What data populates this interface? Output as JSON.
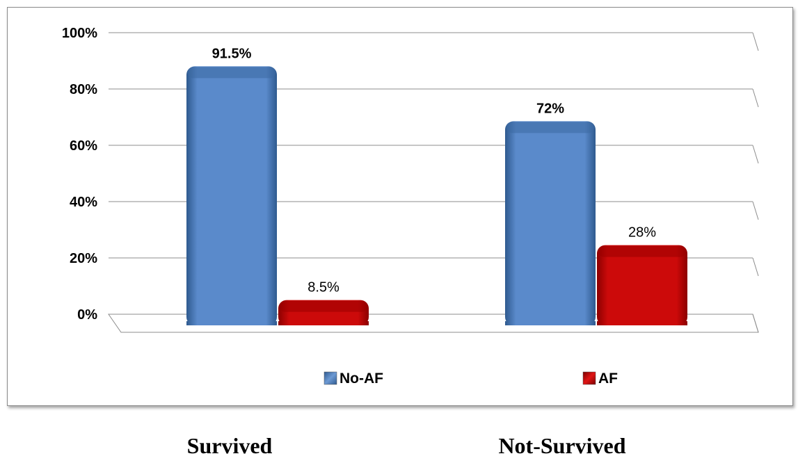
{
  "chart_data": {
    "type": "bar",
    "categories": [
      "Survived",
      "Not-Survived"
    ],
    "series": [
      {
        "name": "No-AF",
        "values": [
          91.5,
          72
        ],
        "labels": [
          "91.5%",
          "72%"
        ],
        "color": "#4f81bd"
      },
      {
        "name": "AF",
        "values": [
          8.5,
          28
        ],
        "labels": [
          "8.5%",
          "28%"
        ],
        "color": "#c00000"
      }
    ],
    "y_ticks": [
      "0%",
      "20%",
      "40%",
      "60%",
      "80%",
      "100%"
    ],
    "ylim": [
      0,
      100
    ],
    "grid": true,
    "legend_position": "bottom"
  }
}
